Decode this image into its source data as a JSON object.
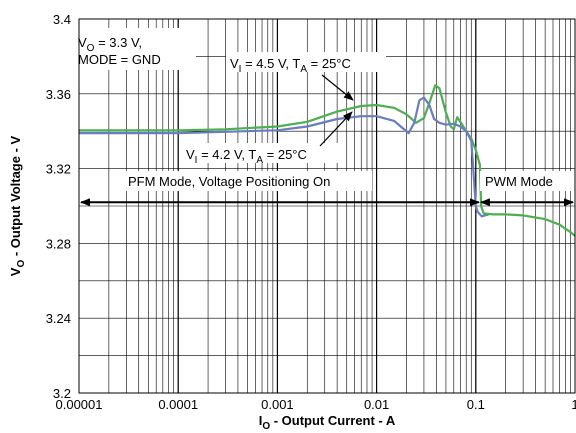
{
  "chart_data": {
    "type": "line",
    "xscale": "log",
    "xlim": [
      1e-05,
      1
    ],
    "ylim": [
      3.2,
      3.4
    ],
    "x_ticks": [
      1e-05,
      0.0001,
      0.001,
      0.01,
      0.1,
      1
    ],
    "x_tick_labels": [
      "0.00001",
      "0.0001",
      "0.001",
      "0.01",
      "0.1",
      "1"
    ],
    "y_ticks": [
      3.2,
      3.24,
      3.28,
      3.32,
      3.36,
      3.4
    ],
    "y_tick_labels": [
      "3.2",
      "3.24",
      "3.28",
      "3.32",
      "3.36",
      "3.4"
    ],
    "xlabel": {
      "main": "I",
      "sub": "O",
      "rest": " - Output Current - A"
    },
    "ylabel": {
      "main": "V",
      "sub": "O",
      "rest": " - Output Voltage - V"
    },
    "grid": true,
    "series": [
      {
        "name": {
          "a": "V",
          "b": "I",
          "c": " = 4.5 V, T",
          "d": "A",
          "e": " = 25°C"
        },
        "color": "#4caf50",
        "points": [
          [
            1e-05,
            3.3405
          ],
          [
            3e-05,
            3.3405
          ],
          [
            0.0001,
            3.3405
          ],
          [
            0.0003,
            3.341
          ],
          [
            0.001,
            3.3425
          ],
          [
            0.002,
            3.345
          ],
          [
            0.004,
            3.3505
          ],
          [
            0.007,
            3.3535
          ],
          [
            0.01,
            3.354
          ],
          [
            0.015,
            3.3525
          ],
          [
            0.02,
            3.349
          ],
          [
            0.025,
            3.3445
          ],
          [
            0.03,
            3.347
          ],
          [
            0.035,
            3.357
          ],
          [
            0.039,
            3.3645
          ],
          [
            0.043,
            3.363
          ],
          [
            0.05,
            3.35
          ],
          [
            0.056,
            3.3425
          ],
          [
            0.06,
            3.341
          ],
          [
            0.065,
            3.3475
          ],
          [
            0.072,
            3.344
          ],
          [
            0.08,
            3.34
          ],
          [
            0.09,
            3.336
          ],
          [
            0.1,
            3.33
          ],
          [
            0.11,
            3.322
          ],
          [
            0.113,
            3.3
          ]
        ]
      },
      {
        "name": {
          "a": "V",
          "b": "I",
          "c": " = 4.2 V, T",
          "d": "A",
          "e": " = 25°C"
        },
        "color": "#6a7dc0",
        "points": [
          [
            1e-05,
            3.339
          ],
          [
            0.0001,
            3.339
          ],
          [
            0.001,
            3.3405
          ],
          [
            0.002,
            3.3425
          ],
          [
            0.004,
            3.3465
          ],
          [
            0.007,
            3.348
          ],
          [
            0.01,
            3.348
          ],
          [
            0.015,
            3.3455
          ],
          [
            0.018,
            3.342
          ],
          [
            0.021,
            3.339
          ],
          [
            0.024,
            3.3445
          ],
          [
            0.027,
            3.3565
          ],
          [
            0.03,
            3.358
          ],
          [
            0.034,
            3.354
          ],
          [
            0.038,
            3.3465
          ],
          [
            0.043,
            3.3445
          ],
          [
            0.05,
            3.3435
          ],
          [
            0.06,
            3.344
          ],
          [
            0.07,
            3.3425
          ],
          [
            0.08,
            3.34
          ],
          [
            0.09,
            3.335
          ],
          [
            0.1,
            3.3
          ],
          [
            0.104,
            3.297
          ],
          [
            0.11,
            3.2955
          ],
          [
            0.115,
            3.2945
          ],
          [
            0.135,
            3.2955
          ]
        ]
      },
      {
        "name": "",
        "color": "#4caf50",
        "points": [
          [
            0.113,
            3.3
          ],
          [
            0.12,
            3.296
          ],
          [
            0.15,
            3.2955
          ],
          [
            0.2,
            3.2955
          ],
          [
            0.3,
            3.295
          ],
          [
            0.5,
            3.293
          ],
          [
            0.7,
            3.29
          ],
          [
            0.9,
            3.286
          ],
          [
            1,
            3.284
          ]
        ]
      }
    ],
    "annotations": {
      "mode_note": {
        "line1_a": "V",
        "line1_b": "O",
        "line1_c": " = 3.3 V,",
        "line2": "MODE = GND"
      },
      "pfm_label": "PFM Mode, Voltage Positioning On",
      "pwm_label": "PWM Mode"
    },
    "pfm_range": [
      1e-05,
      0.11
    ],
    "pwm_range": [
      0.11,
      1
    ],
    "arrow_level": 3.302
  }
}
